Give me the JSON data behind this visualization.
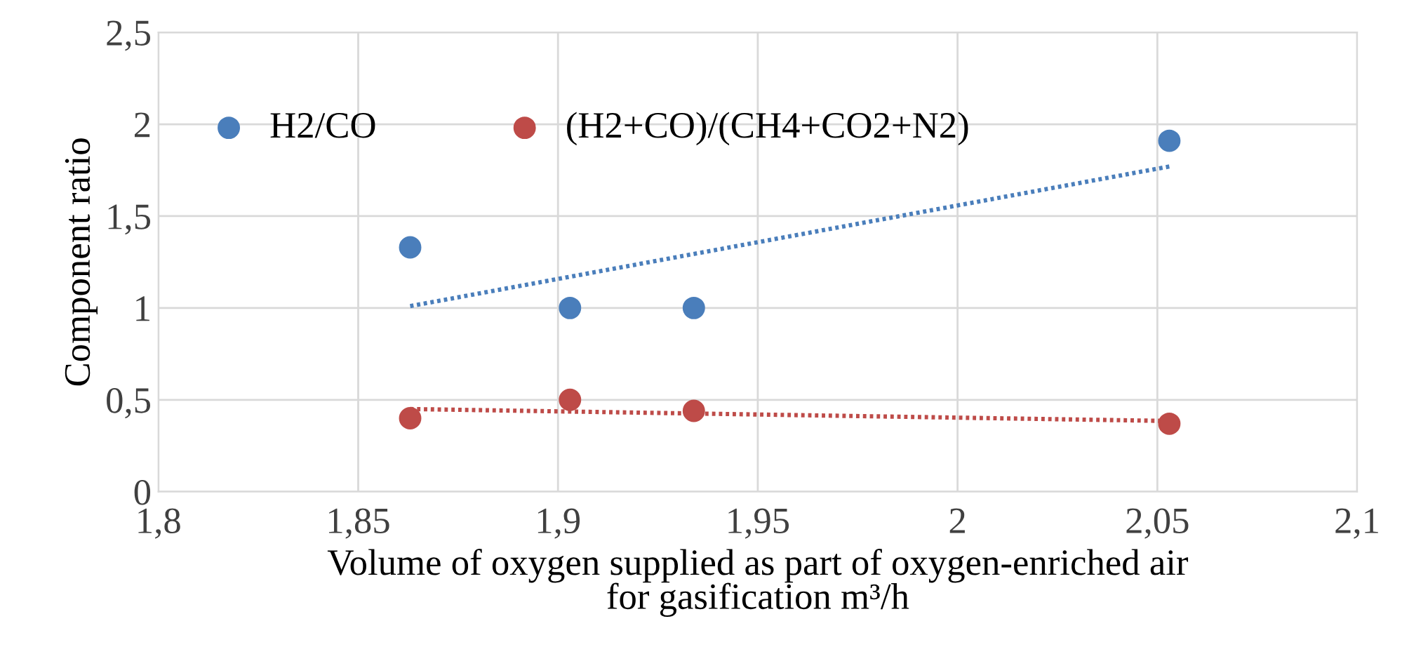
{
  "chart_data": {
    "type": "scatter",
    "xlabel": "Volume of oxygen supplied as part of oxygen-enriched air\nfor gasification m³/h",
    "ylabel": "Component ratio",
    "xlim": [
      1.8,
      2.1
    ],
    "ylim": [
      0,
      2.5
    ],
    "xticks": [
      {
        "value": 1.8,
        "label": "1,8"
      },
      {
        "value": 1.85,
        "label": "1,85"
      },
      {
        "value": 1.9,
        "label": "1,9"
      },
      {
        "value": 1.95,
        "label": "1,95"
      },
      {
        "value": 2,
        "label": "2"
      },
      {
        "value": 2.05,
        "label": "2,05"
      },
      {
        "value": 2.1,
        "label": "2,1"
      }
    ],
    "yticks": [
      0,
      {
        "value": 0.5,
        "label": "0,5"
      },
      1,
      {
        "value": 1.5,
        "label": "1,5"
      },
      2,
      {
        "value": 2.5,
        "label": "2,5"
      }
    ],
    "grid": true,
    "legend": "top left",
    "marker": "circle",
    "series": [
      {
        "name": "H2/CO",
        "color": "#4a7ebb",
        "x": [
          1.863,
          1.903,
          1.934,
          2.053
        ],
        "values": [
          1.33,
          1.0,
          1.0,
          1.91
        ]
      },
      {
        "name": "(H2+CO)/(CH4+CO2+N2)",
        "color": "#be4b48",
        "x": [
          1.863,
          1.903,
          1.934,
          2.053
        ],
        "values": [
          0.4,
          0.5,
          0.44,
          0.37
        ]
      },
      {
        "type": "line",
        "line_style": "dotted",
        "marker": "none",
        "color": "#4a7ebb",
        "x": [
          1.863,
          2.053
        ],
        "values": [
          1.01,
          1.77
        ]
      },
      {
        "type": "line",
        "line_style": "dotted",
        "marker": "none",
        "color": "#be4b48",
        "x": [
          1.863,
          2.053
        ],
        "values": [
          0.45,
          0.385
        ]
      }
    ]
  }
}
